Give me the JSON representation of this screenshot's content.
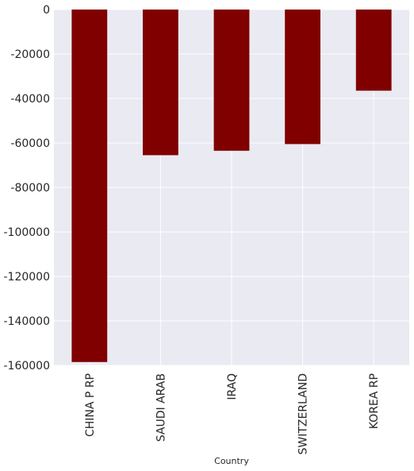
{
  "chart_data": {
    "type": "bar",
    "categories": [
      "CHINA P RP",
      "SAUDI ARAB",
      "IRAQ",
      "SWITZERLAND",
      "KOREA RP"
    ],
    "values": [
      -158500,
      -65500,
      -63500,
      -60500,
      -36500
    ],
    "xlabel": "Country",
    "ylabel": "",
    "ylim": [
      -160000,
      0
    ],
    "yticks": [
      0,
      -20000,
      -40000,
      -60000,
      -80000,
      -100000,
      -120000,
      -140000,
      -160000
    ],
    "grid": true,
    "bar_color": "#800000",
    "background_color": "#eaeaf2",
    "grid_color": "#ffffff"
  }
}
